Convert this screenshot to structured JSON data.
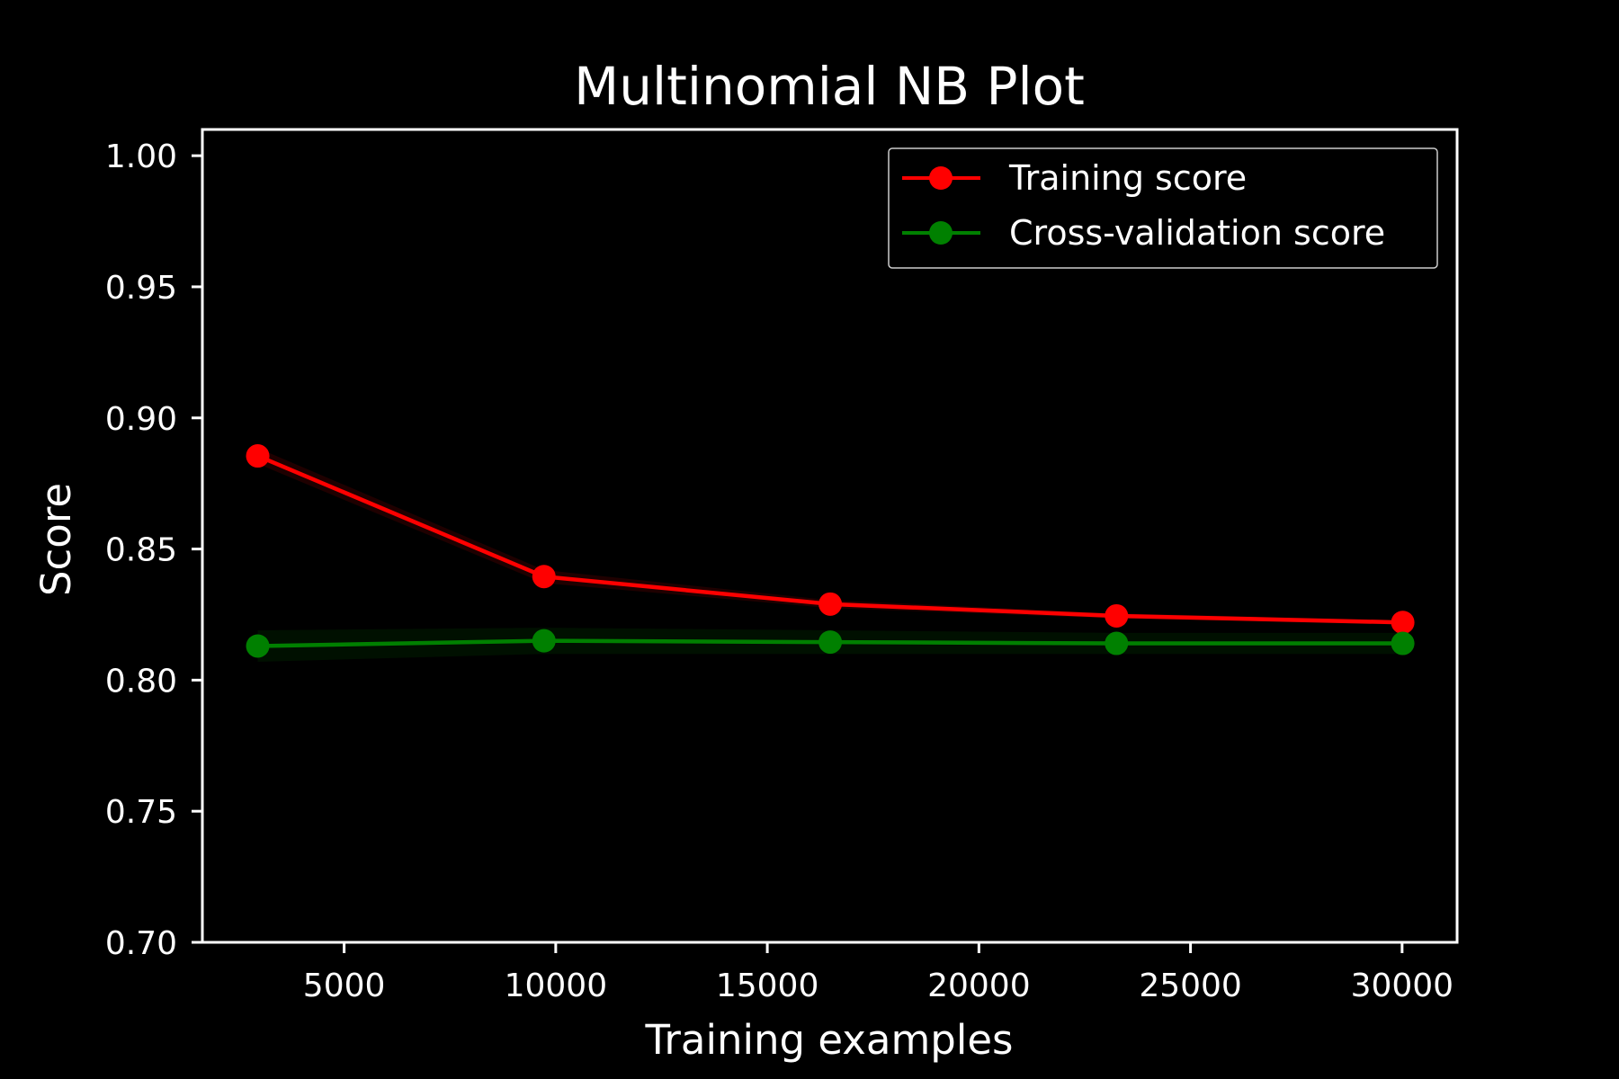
{
  "chart_data": {
    "type": "line",
    "title": "Multinomial NB Plot",
    "xlabel": "Training examples",
    "ylabel": "Score",
    "xlim": [
      1650,
      31300
    ],
    "ylim": [
      0.7,
      1.01
    ],
    "xticks": [
      5000,
      10000,
      15000,
      20000,
      25000,
      30000
    ],
    "yticks": [
      0.7,
      0.75,
      0.8,
      0.85,
      0.9,
      0.95,
      1.0
    ],
    "ytick_labels": [
      "0.70",
      "0.75",
      "0.80",
      "0.85",
      "0.90",
      "0.95",
      "1.00"
    ],
    "xtick_labels": [
      "5000",
      "10000",
      "15000",
      "20000",
      "25000",
      "30000"
    ],
    "grid": false,
    "legend_position": "top-right",
    "background_color": "#000000",
    "axes_color": "#ffffff",
    "x": [
      2958,
      9722,
      16487,
      23251,
      30016
    ],
    "series": [
      {
        "name": "Training score",
        "color": "#ff0000",
        "values": [
          0.8855,
          0.8395,
          0.829,
          0.8245,
          0.822
        ],
        "band": [
          0.003,
          0.0025,
          0.0015,
          0.001,
          0.0008
        ]
      },
      {
        "name": "Cross-validation score",
        "color": "#008000",
        "values": [
          0.813,
          0.815,
          0.8145,
          0.814,
          0.814
        ],
        "band": [
          0.006,
          0.005,
          0.0045,
          0.004,
          0.004
        ]
      }
    ]
  }
}
